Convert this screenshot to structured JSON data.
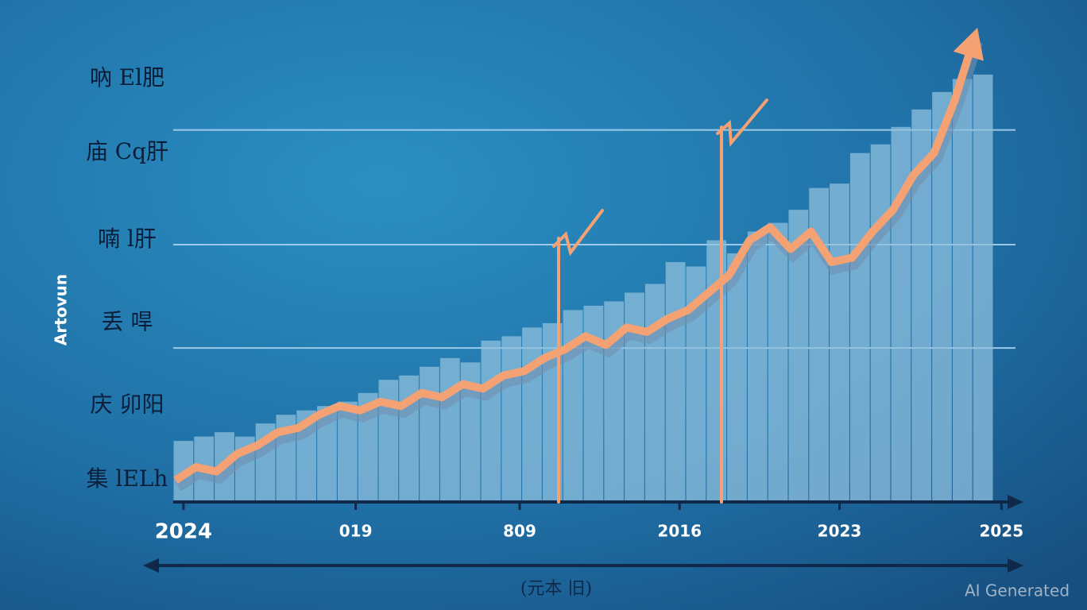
{
  "chart_data": {
    "type": "bar",
    "y_label": "Artovun",
    "x_label": "(元本 旧)",
    "watermark": "AI Generated",
    "categories": [
      null,
      null,
      null,
      null,
      null,
      null,
      null,
      null,
      null,
      null,
      null,
      null,
      null,
      null,
      null,
      null,
      null,
      null,
      null,
      null,
      null,
      null,
      null,
      null,
      null,
      null,
      null,
      null,
      null,
      null,
      null,
      null,
      null,
      null,
      null,
      null,
      null,
      null,
      null,
      null
    ],
    "series": [
      {
        "type": "bar",
        "color": "#8fc0dd",
        "values": [
          14,
          15,
          16,
          15,
          18,
          20,
          21,
          22,
          23,
          25,
          28,
          29,
          31,
          33,
          32,
          37,
          38,
          40,
          41,
          44,
          45,
          46,
          48,
          50,
          55,
          54,
          60,
          57,
          62,
          64,
          67,
          72,
          73,
          80,
          82,
          86,
          90,
          94,
          97,
          98
        ]
      },
      {
        "type": "line",
        "color": "#f4a274",
        "values": [
          5,
          8,
          7,
          11,
          13,
          16,
          17,
          20,
          22,
          21,
          23,
          22,
          25,
          24,
          27,
          26,
          29,
          30,
          33,
          35,
          38,
          36,
          40,
          39,
          42,
          44,
          48,
          52,
          60,
          63,
          58,
          62,
          55,
          56,
          62,
          67,
          75,
          80,
          92,
          107
        ]
      }
    ],
    "ylim": [
      0,
      110
    ],
    "yticks": [
      {
        "value": 97,
        "label": "吶 El肥"
      },
      {
        "value": 80,
        "label": "庙 Cq肝"
      },
      {
        "value": 60,
        "label": "喃 l肝"
      },
      {
        "value": 41,
        "label": "丢 哻"
      },
      {
        "value": 22,
        "label": "庆 卯阳"
      },
      {
        "value": 5,
        "label": "集 lELh"
      }
    ],
    "gridlines": [
      85.3,
      59,
      35.3
    ],
    "xlim": [
      0,
      40
    ],
    "xticks": [
      {
        "value": 0.5,
        "label": "2024"
      },
      {
        "value": 8.9,
        "label": "019"
      },
      {
        "value": 16.9,
        "label": "809"
      },
      {
        "value": 24.7,
        "label": "2016"
      },
      {
        "value": 32.5,
        "label": "2023"
      },
      {
        "value": 40.4,
        "label": "2025"
      }
    ],
    "grid": true
  }
}
